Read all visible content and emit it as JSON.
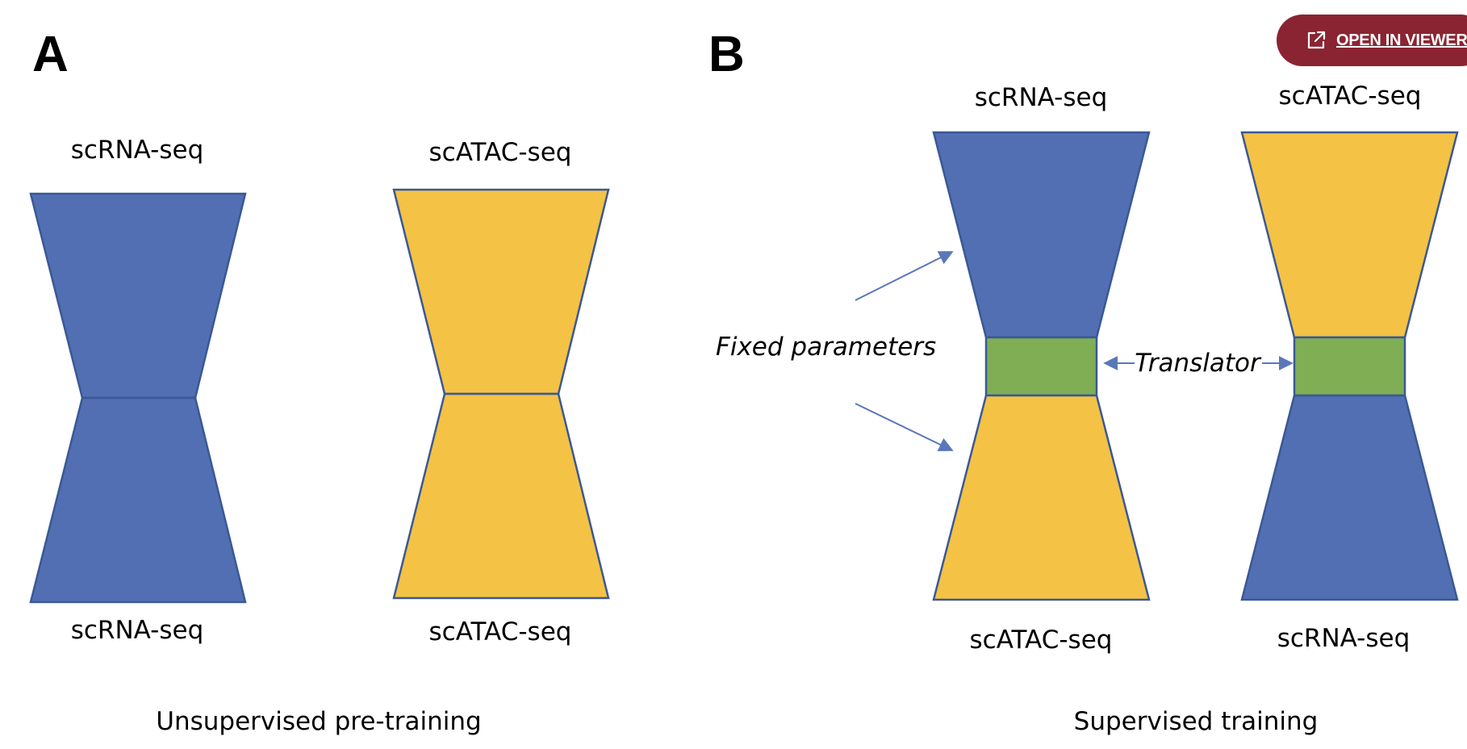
{
  "panel_a": {
    "letter": "A",
    "left_model": {
      "top_label": "scRNA-seq",
      "bottom_label": "scRNA-seq"
    },
    "right_model": {
      "top_label": "scATAC-seq",
      "bottom_label": "scATAC-seq"
    },
    "caption": "Unsupervised pre-training"
  },
  "panel_b": {
    "letter": "B",
    "left_model": {
      "top_label": "scRNA-seq",
      "bottom_label": "scATAC-seq"
    },
    "right_model": {
      "top_label": "scATAC-seq",
      "bottom_label": "scRNA-seq"
    },
    "fixed_parameters_label": "Fixed parameters",
    "translator_label": "Translator",
    "caption": "Supervised training"
  },
  "open_viewer_button": {
    "label": "OPEN IN VIEWER",
    "icon": "external-link-icon"
  },
  "colors": {
    "blue": "#516fb2",
    "yellow": "#f4c244",
    "green": "#7fae55",
    "outline": "#3a5895",
    "arrow": "#5a78b8",
    "button": "#8a2432"
  }
}
